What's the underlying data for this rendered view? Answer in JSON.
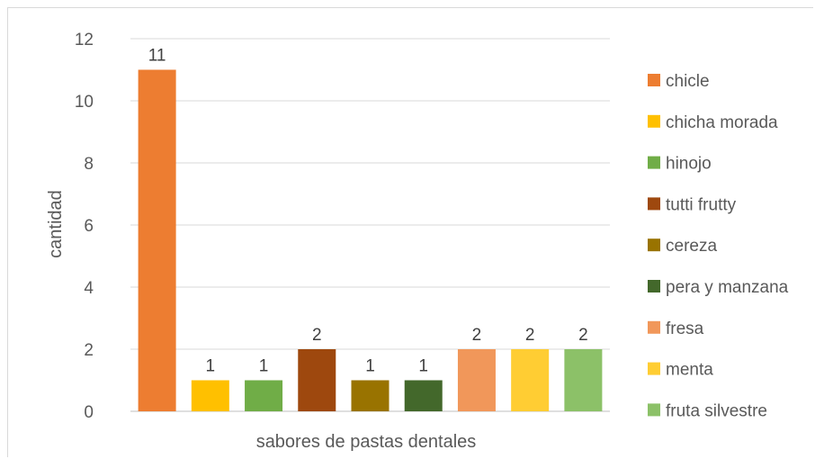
{
  "chart_data": {
    "type": "bar",
    "title": "",
    "xlabel": "sabores de pastas dentales",
    "ylabel": "cantidad",
    "ylim": [
      0,
      12
    ],
    "yticks": [
      0,
      2,
      4,
      6,
      8,
      10,
      12
    ],
    "grid": true,
    "legend_position": "right",
    "categories": [
      "chicle",
      "chicha morada",
      "hinojo",
      "tutti frutty",
      "cereza",
      "pera y manzana",
      "fresa",
      "menta",
      "fruta silvestre"
    ],
    "values": [
      11,
      1,
      1,
      2,
      1,
      1,
      2,
      2,
      2
    ],
    "colors": [
      "#ED7D31",
      "#FFC000",
      "#70AD47",
      "#9E480E",
      "#997300",
      "#43682B",
      "#F1975A",
      "#FFCD33",
      "#8CC168"
    ],
    "data_labels": true
  }
}
